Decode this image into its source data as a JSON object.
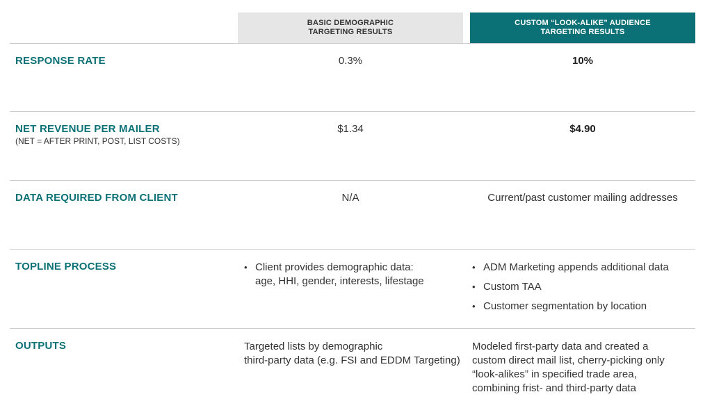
{
  "headers": {
    "basic": "BASIC DEMOGRAPHIC\nTARGETING RESULTS",
    "custom": "CUSTOM “LOOK-ALIKE” AUDIENCE\nTARGETING RESULTS"
  },
  "rows": {
    "response_rate": {
      "label": "RESPONSE RATE",
      "basic": "0.3%",
      "custom": "10%"
    },
    "net_revenue": {
      "label": "NET REVENUE PER MAILER",
      "sublabel": "(NET = AFTER PRINT, POST, LIST COSTS)",
      "basic": "$1.34",
      "custom": "$4.90"
    },
    "data_required": {
      "label": "DATA REQUIRED FROM CLIENT",
      "basic": "N/A",
      "custom": "Current/past customer mailing addresses"
    },
    "topline": {
      "label": "TOPLINE PROCESS",
      "basic": [
        "Client provides demographic data:\nage, HHI, gender, interests, lifestage"
      ],
      "custom": [
        "ADM Marketing appends additional data",
        "Custom TAA",
        "Customer segmentation by location"
      ]
    },
    "outputs": {
      "label": "OUTPUTS",
      "basic": "Targeted lists by demographic\nthird-party data (e.g. FSI and EDDM Targeting)",
      "custom": "Modeled first-party data and created a\ncustom direct mail list, cherry-picking only\n“look-alikes” in specified trade area,\ncombining frist- and third-party data"
    }
  }
}
